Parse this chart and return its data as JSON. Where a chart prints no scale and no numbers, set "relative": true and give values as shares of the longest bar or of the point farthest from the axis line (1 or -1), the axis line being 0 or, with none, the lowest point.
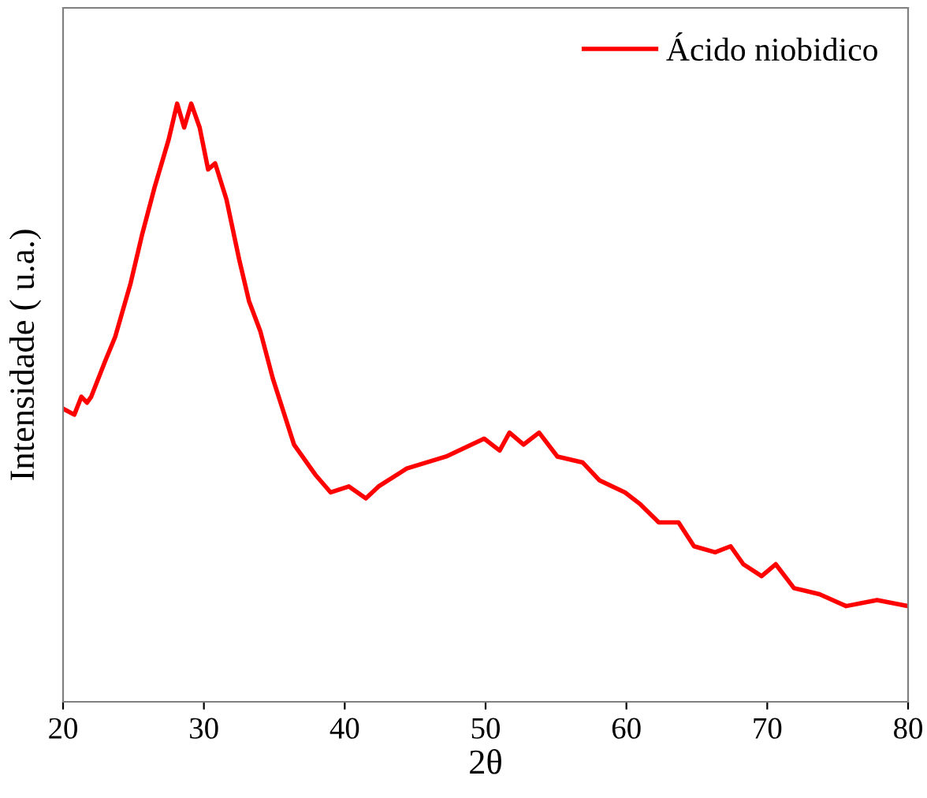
{
  "chart_data": {
    "type": "line",
    "xlabel": "2θ",
    "ylabel": "Intensidade ( u.a.)",
    "relative": true,
    "xlim": [
      20,
      80
    ],
    "xticks": [
      20,
      30,
      40,
      50,
      60,
      70,
      80
    ],
    "legend": "top right",
    "grid": false,
    "tick_labels": "x",
    "series": [
      {
        "name": "Ácido niobidico",
        "color": "#ff0000",
        "x": [
          20.0,
          20.8,
          21.3,
          21.7,
          22.0,
          23.0,
          23.7,
          24.8,
          25.6,
          26.5,
          27.5,
          28.1,
          28.6,
          29.1,
          29.7,
          30.3,
          30.8,
          31.6,
          32.5,
          33.2,
          34.0,
          34.9,
          36.4,
          37.9,
          39.0,
          40.3,
          41.5,
          42.4,
          44.4,
          47.2,
          49.9,
          51.0,
          51.7,
          52.7,
          53.8,
          55.1,
          56.9,
          58.1,
          59.9,
          61.0,
          62.3,
          63.7,
          64.8,
          66.3,
          67.4,
          68.3,
          69.6,
          70.6,
          71.9,
          73.7,
          75.6,
          77.8,
          80.0
        ],
        "values": [
          0.49,
          0.48,
          0.51,
          0.5,
          0.51,
          0.57,
          0.61,
          0.7,
          0.78,
          0.86,
          0.94,
          1.0,
          0.96,
          1.0,
          0.96,
          0.89,
          0.9,
          0.84,
          0.74,
          0.67,
          0.62,
          0.54,
          0.43,
          0.38,
          0.35,
          0.36,
          0.34,
          0.36,
          0.39,
          0.41,
          0.44,
          0.42,
          0.45,
          0.43,
          0.45,
          0.41,
          0.4,
          0.37,
          0.35,
          0.33,
          0.3,
          0.3,
          0.26,
          0.25,
          0.26,
          0.23,
          0.21,
          0.23,
          0.19,
          0.18,
          0.16,
          0.17,
          0.16
        ]
      }
    ]
  }
}
